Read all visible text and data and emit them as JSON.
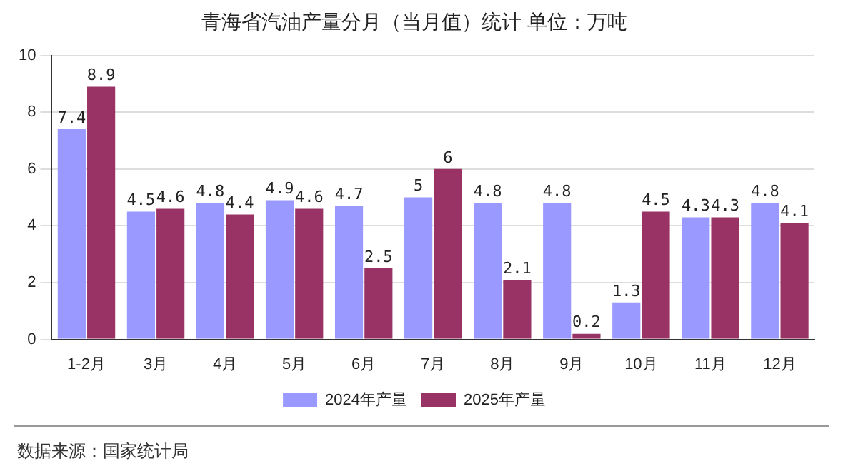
{
  "chart_data": {
    "type": "bar",
    "title": "青海省汽油产量分月（当月值）统计 单位：万吨",
    "categories": [
      "1-2月",
      "3月",
      "4月",
      "5月",
      "6月",
      "7月",
      "8月",
      "9月",
      "10月",
      "11月",
      "12月"
    ],
    "series": [
      {
        "name": "2024年产量",
        "color": "#9999ff",
        "values": [
          7.4,
          4.5,
          4.8,
          4.9,
          4.7,
          5,
          4.8,
          4.8,
          1.3,
          4.3,
          4.8
        ]
      },
      {
        "name": "2025年产量",
        "color": "#993366",
        "values": [
          8.9,
          4.6,
          4.4,
          4.6,
          2.5,
          6,
          2.1,
          0.2,
          4.5,
          4.3,
          4.1
        ]
      }
    ],
    "ylim": [
      0,
      10
    ],
    "yticks": [
      0,
      2,
      4,
      6,
      8,
      10
    ],
    "grid": "y",
    "legend": "bottom",
    "data_labels": true,
    "annotations": [
      "数据来源：国家统计局"
    ]
  }
}
